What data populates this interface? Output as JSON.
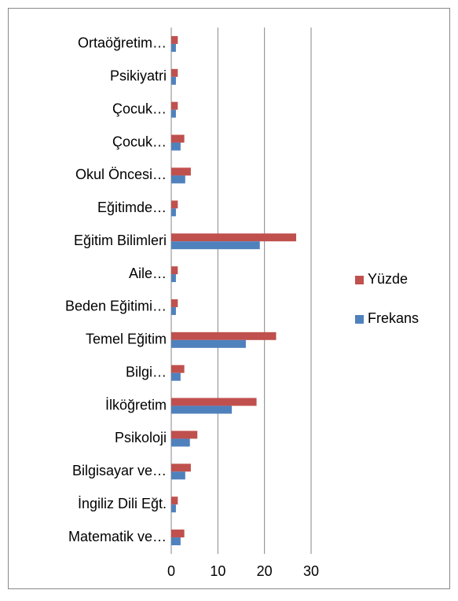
{
  "chart_data": {
    "type": "bar",
    "orientation": "horizontal",
    "categories": [
      "Ortaöğretim…",
      "Psikiyatri",
      "Çocuk…",
      "Çocuk…",
      "Okul Öncesi…",
      "Eğitimde…",
      "Eğitim Bilimleri",
      "Aile…",
      "Beden Eğitimi…",
      "Temel Eğitim",
      "Bilgi…",
      "İlköğretim",
      "Psikoloji",
      "Bilgisayar ve…",
      "İngiliz Dili Eğt.",
      "Matematik ve…"
    ],
    "series": [
      {
        "name": "Yüzde",
        "color": "#c0504d",
        "values": [
          1.4,
          1.4,
          1.4,
          2.8,
          4.2,
          1.4,
          26.8,
          1.4,
          1.4,
          22.5,
          2.8,
          18.3,
          5.6,
          4.2,
          1.4,
          2.8
        ]
      },
      {
        "name": "Frekans",
        "color": "#4f81bd",
        "values": [
          1,
          1,
          1,
          2,
          3,
          1,
          19,
          1,
          1,
          16,
          2,
          13,
          4,
          3,
          1,
          2
        ]
      }
    ],
    "xlim": [
      0,
      30
    ],
    "xticks": [
      0,
      10,
      20,
      30
    ],
    "grid": true,
    "legend": "right"
  }
}
